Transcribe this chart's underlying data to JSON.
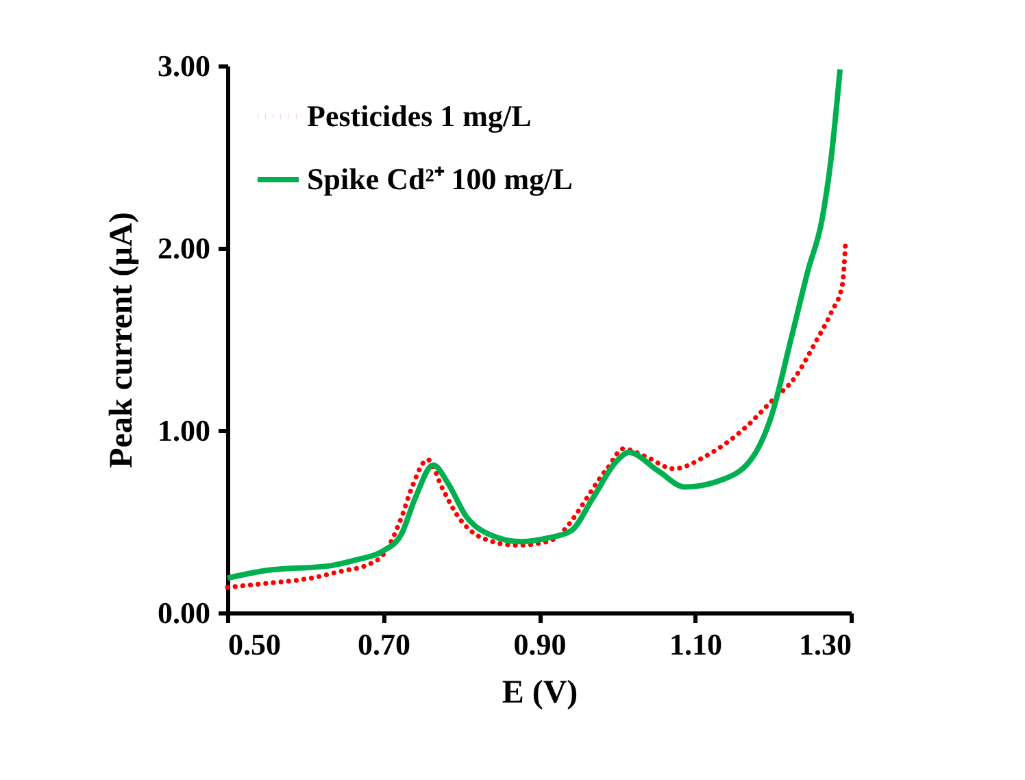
{
  "chart_data": {
    "type": "line",
    "xlabel": "E (V)",
    "ylabel": "Peak current (µA)",
    "xlim": [
      0.5,
      1.3
    ],
    "xticks": [
      {
        "value": 0.5,
        "label": "0.50"
      },
      {
        "value": 0.7,
        "label": "0.70"
      },
      {
        "value": 0.9,
        "label": "0.90"
      },
      {
        "value": 1.1,
        "label": "1.10"
      },
      {
        "value": 1.3,
        "label": "1.30"
      }
    ],
    "ylim": [
      0,
      3
    ],
    "yticks": [
      {
        "value": 0,
        "label": "0.00"
      },
      {
        "value": 1,
        "label": "1.00"
      },
      {
        "value": 2,
        "label": "2.00"
      },
      {
        "value": 3,
        "label": "3.00"
      }
    ],
    "grid": false,
    "legend": "top left",
    "marker": "none",
    "series": [
      {
        "name": "Pesticides 1 mg/L",
        "color": "#ff0000",
        "line_style": "dotted",
        "x": [
          0.5,
          0.547,
          0.607,
          0.648,
          0.678,
          0.7,
          0.723,
          0.736,
          0.757,
          0.776,
          0.794,
          0.827,
          0.871,
          0.911,
          0.987,
          1.008,
          1.035,
          1.073,
          1.114,
          1.163,
          1.198,
          1.228,
          1.254,
          1.275,
          1.289,
          1.293
        ],
        "values": [
          0.14,
          0.16,
          0.19,
          0.23,
          0.26,
          0.32,
          0.52,
          0.68,
          0.84,
          0.68,
          0.54,
          0.41,
          0.37,
          0.39,
          0.79,
          0.9,
          0.86,
          0.79,
          0.86,
          1.01,
          1.16,
          1.29,
          1.48,
          1.65,
          1.8,
          2.03
        ]
      },
      {
        "name": "Spike Cd²⁺ 100 mg/L",
        "color": "#00b050",
        "line_style": "solid",
        "x": [
          0.5,
          0.547,
          0.635,
          0.665,
          0.7,
          0.723,
          0.741,
          0.764,
          0.783,
          0.806,
          0.836,
          0.876,
          0.911,
          0.941,
          0.969,
          0.999,
          1.015,
          1.052,
          1.087,
          1.135,
          1.175,
          1.198,
          1.223,
          1.245,
          1.263,
          1.275,
          1.286
        ],
        "values": [
          0.19,
          0.23,
          0.26,
          0.29,
          0.34,
          0.43,
          0.63,
          0.81,
          0.71,
          0.53,
          0.43,
          0.39,
          0.41,
          0.45,
          0.63,
          0.83,
          0.88,
          0.78,
          0.69,
          0.73,
          0.86,
          1.08,
          1.5,
          1.88,
          2.16,
          2.51,
          2.98
        ]
      }
    ]
  }
}
